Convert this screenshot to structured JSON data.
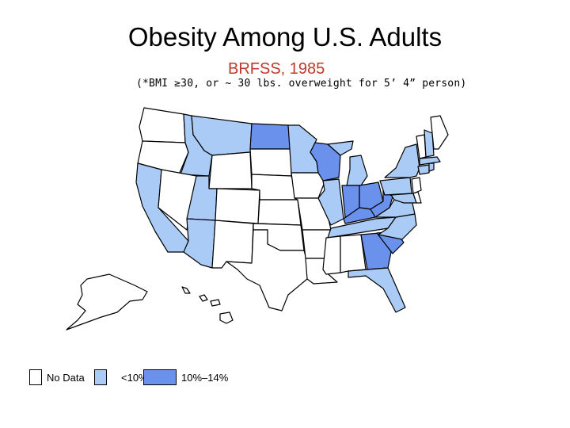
{
  "title": "Obesity Among U.S. Adults",
  "subtitle": "BRFSS, 1985",
  "note": "(*BMI ≥30, or ~ 30 lbs. overweight for 5’ 4” person)",
  "colors": {
    "no_data": "#ffffff",
    "low": "#a9cbf5",
    "mid": "#6a91ec",
    "border": "#000000"
  },
  "legend": [
    {
      "label": "No Data",
      "category": "no_data"
    },
    {
      "label": "<10%",
      "category": "low"
    },
    {
      "label": "10%–14%",
      "category": "mid"
    }
  ],
  "states": {
    "no_data": [
      "Washington",
      "Oregon",
      "Nevada",
      "Wyoming",
      "Colorado",
      "New Mexico",
      "Nebraska",
      "Kansas",
      "Oklahoma",
      "Texas",
      "South Dakota",
      "Iowa",
      "Missouri",
      "Arkansas",
      "Louisiana",
      "Mississippi",
      "Alabama",
      "Maine",
      "Vermont",
      "New Jersey",
      "Delaware",
      "Alaska",
      "Hawaii"
    ],
    "low": [
      "California",
      "Idaho",
      "Montana",
      "Utah",
      "Arizona",
      "Minnesota",
      "Illinois",
      "Michigan",
      "Tennessee",
      "North Carolina",
      "Florida",
      "Virginia",
      "New York",
      "Pennsylvania",
      "Maryland",
      "New Hampshire",
      "Massachusetts",
      "Connecticut",
      "Rhode Island"
    ],
    "mid": [
      "North Dakota",
      "Wisconsin",
      "Indiana",
      "Ohio",
      "Kentucky",
      "West Virginia",
      "Georgia",
      "South Carolina"
    ]
  }
}
